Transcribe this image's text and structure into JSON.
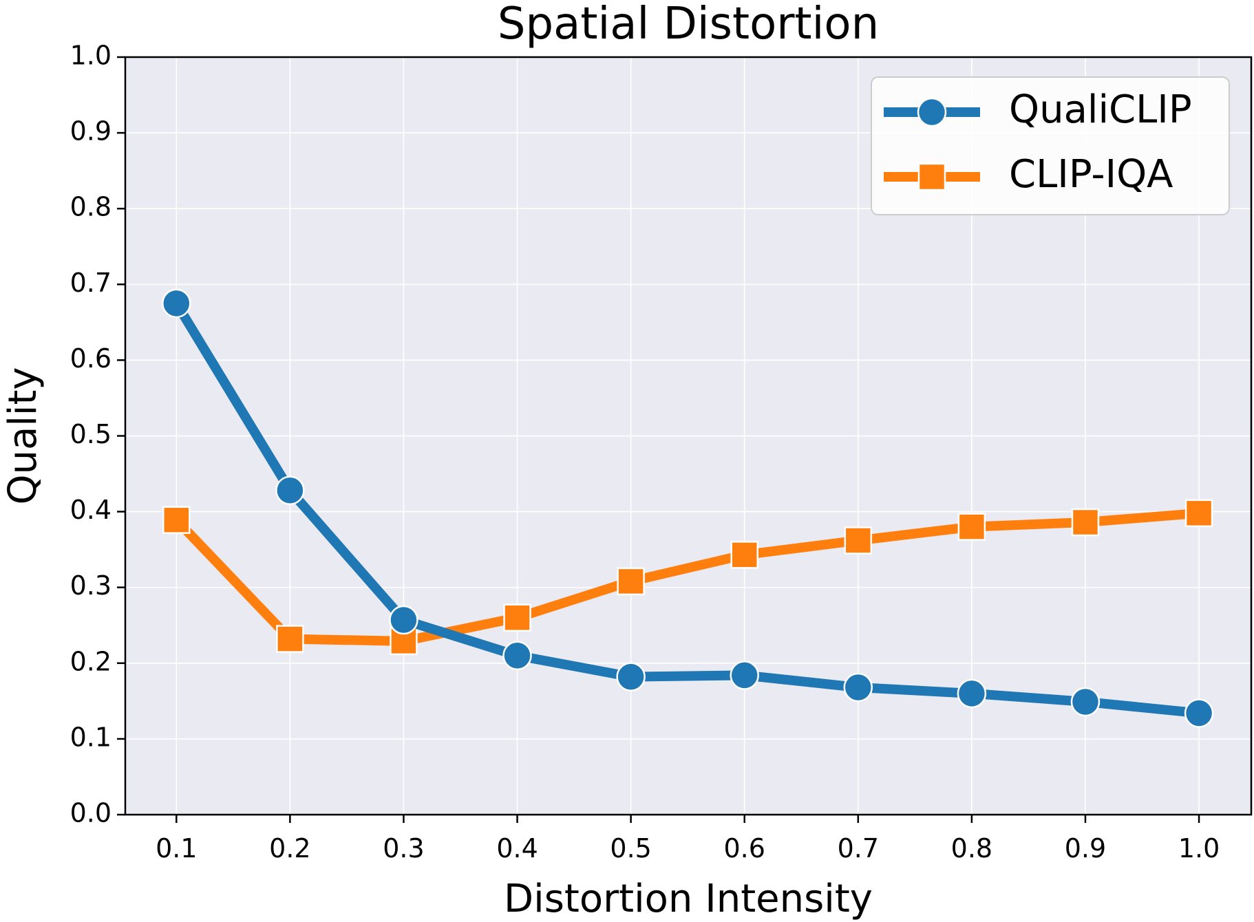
{
  "chart_data": {
    "type": "line",
    "title": "Spatial Distortion",
    "xlabel": "Distortion Intensity",
    "ylabel": "Quality",
    "x": [
      0.1,
      0.2,
      0.3,
      0.4,
      0.5,
      0.6,
      0.7,
      0.8,
      0.9,
      1.0
    ],
    "x_tick_labels": [
      "0.1",
      "0.2",
      "0.3",
      "0.4",
      "0.5",
      "0.6",
      "0.7",
      "0.8",
      "0.9",
      "1.0"
    ],
    "ylim": [
      0.0,
      1.0
    ],
    "y_ticks": [
      0.0,
      0.1,
      0.2,
      0.3,
      0.4,
      0.5,
      0.6,
      0.7,
      0.8,
      0.9,
      1.0
    ],
    "y_tick_labels": [
      "0.0",
      "0.1",
      "0.2",
      "0.3",
      "0.4",
      "0.5",
      "0.6",
      "0.7",
      "0.8",
      "0.9",
      "1.0"
    ],
    "grid": true,
    "legend_position": "top-right",
    "series": [
      {
        "name": "QualiCLIP",
        "marker": "circle",
        "color": "#1f77b4",
        "values": [
          0.675,
          0.428,
          0.257,
          0.21,
          0.182,
          0.184,
          0.168,
          0.16,
          0.149,
          0.134
        ]
      },
      {
        "name": "CLIP-IQA",
        "marker": "square",
        "color": "#ff7f0e",
        "values": [
          0.389,
          0.232,
          0.229,
          0.26,
          0.308,
          0.343,
          0.362,
          0.38,
          0.386,
          0.398
        ]
      }
    ]
  }
}
